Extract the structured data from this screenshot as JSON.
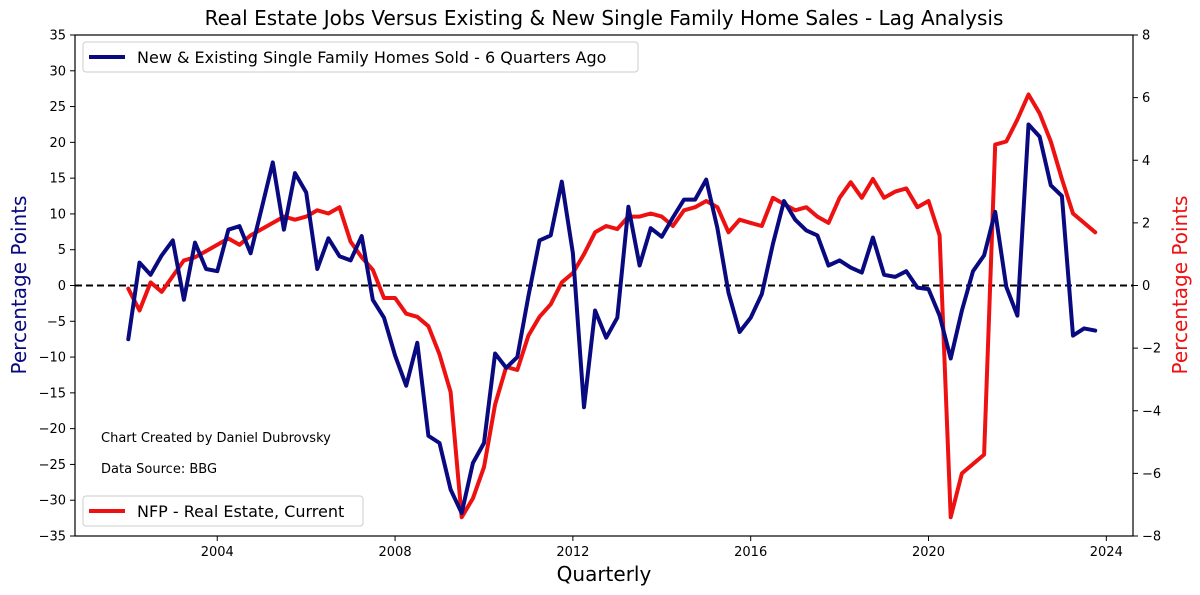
{
  "chart_data": {
    "type": "line",
    "title": "Real Estate Jobs Versus Existing & New Single Family Home Sales - Lag Analysis",
    "xlabel": "Quarterly",
    "ylabel_left": "Percentage Points",
    "ylabel_right": "Percentage Points",
    "xlim": [
      2000.8,
      2024.6
    ],
    "ylim_left": [
      -35,
      35
    ],
    "ylim_right": [
      -8,
      8
    ],
    "x_ticks": [
      2004,
      2008,
      2012,
      2016,
      2020,
      2024
    ],
    "x_tick_labels": [
      "2004",
      "2008",
      "2012",
      "2016",
      "2020",
      "2024"
    ],
    "y_ticks_left": [
      -35,
      -30,
      -25,
      -20,
      -15,
      -10,
      -5,
      0,
      5,
      10,
      15,
      20,
      25,
      30,
      35
    ],
    "y_tick_labels_left": [
      "−35",
      "−30",
      "−25",
      "−20",
      "−15",
      "−10",
      "−5",
      "0",
      "5",
      "10",
      "15",
      "20",
      "25",
      "30",
      "35"
    ],
    "y_ticks_right": [
      -8,
      -6,
      -4,
      -2,
      0,
      2,
      4,
      6,
      8
    ],
    "y_tick_labels_right": [
      "−8",
      "−6",
      "−4",
      "−2",
      "0",
      "2",
      "4",
      "6",
      "8"
    ],
    "zero_line": {
      "style": "dashed",
      "color": "#000000"
    },
    "annotations": [
      "Chart Created by Daniel Dubrovsky",
      "Data Source: BBG"
    ],
    "x_start": 2002.0,
    "x_step": 0.25,
    "series": [
      {
        "name": "New & Existing Single Family Homes Sold - 6 Quarters Ago",
        "axis": "left",
        "color": "#0a0a80",
        "legend_position": "top-left",
        "values": [
          -7.5,
          3.2,
          1.5,
          4.2,
          6.3,
          -2.0,
          6.0,
          2.3,
          2.0,
          7.8,
          8.3,
          4.5,
          10.8,
          17.2,
          7.8,
          15.7,
          13.0,
          2.3,
          6.6,
          4.1,
          3.5,
          6.9,
          -2.0,
          -4.5,
          -9.8,
          -14.0,
          -8.0,
          -21.0,
          -22.0,
          -28.5,
          -31.8,
          -24.8,
          -22.0,
          -9.5,
          -11.5,
          -10.0,
          -1.5,
          6.3,
          7.0,
          14.5,
          4.5,
          -17.0,
          -3.5,
          -7.3,
          -4.5,
          11.0,
          2.8,
          8.0,
          6.8,
          9.5,
          12.0,
          12.0,
          14.8,
          8.0,
          -1.0,
          -6.5,
          -4.5,
          -1.2,
          5.8,
          11.8,
          9.2,
          7.7,
          7.0,
          2.8,
          3.5,
          2.5,
          1.8,
          6.7,
          1.5,
          1.2,
          2.0,
          -0.3,
          -0.5,
          -4.2,
          -10.2,
          -3.5,
          2.0,
          4.2,
          10.3,
          -0.2,
          -4.2,
          22.5,
          20.8,
          14.0,
          12.5,
          -7.0,
          -6.0,
          -6.3
        ]
      },
      {
        "name": "NFP - Real Estate, Current",
        "axis": "right",
        "color": "#ee1111",
        "legend_position": "bottom-left",
        "values": [
          -0.1,
          -0.8,
          0.1,
          -0.2,
          0.3,
          0.8,
          0.9,
          1.1,
          1.3,
          1.5,
          1.3,
          1.6,
          1.8,
          2.0,
          2.2,
          2.1,
          2.2,
          2.4,
          2.3,
          2.5,
          1.4,
          0.9,
          0.5,
          -0.4,
          -0.4,
          -0.9,
          -1.0,
          -1.3,
          -2.2,
          -3.4,
          -7.4,
          -6.8,
          -5.8,
          -3.8,
          -2.6,
          -2.7,
          -1.6,
          -1.0,
          -0.6,
          0.1,
          0.4,
          1.0,
          1.7,
          1.9,
          1.8,
          2.2,
          2.2,
          2.3,
          2.2,
          1.9,
          2.4,
          2.5,
          2.7,
          2.5,
          1.7,
          2.1,
          2.0,
          1.9,
          2.8,
          2.6,
          2.4,
          2.5,
          2.2,
          2.0,
          2.8,
          3.3,
          2.8,
          3.4,
          2.8,
          3.0,
          3.1,
          2.5,
          2.7,
          1.6,
          -7.4,
          -6.0,
          -5.7,
          -5.4,
          4.5,
          4.6,
          5.3,
          6.1,
          5.5,
          4.6,
          3.4,
          2.3,
          2.0,
          1.7
        ]
      }
    ]
  }
}
